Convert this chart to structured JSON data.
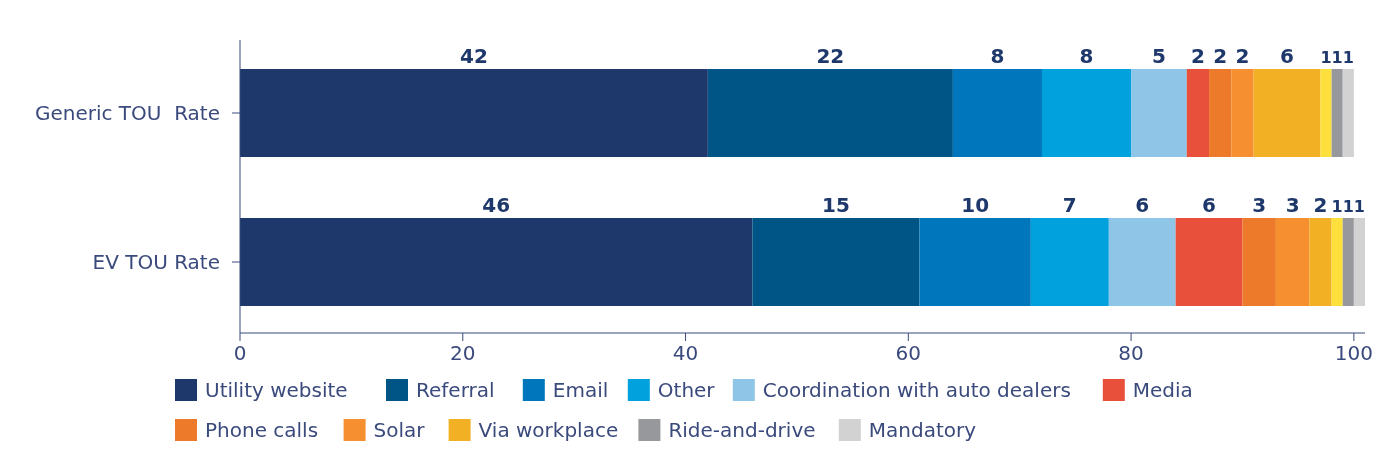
{
  "chart_data": {
    "type": "bar",
    "orientation": "horizontal",
    "stacked": true,
    "categories": [
      "Generic TOU  Rate",
      "EV TOU Rate"
    ],
    "series": [
      {
        "name": "Utility website",
        "color": "#1f386b",
        "values": [
          42,
          46
        ]
      },
      {
        "name": "Referral",
        "color": "#005587",
        "values": [
          22,
          15
        ]
      },
      {
        "name": "Email",
        "color": "#0077bc",
        "values": [
          8,
          10
        ]
      },
      {
        "name": "Other",
        "color": "#00a1dc",
        "values": [
          8,
          7
        ]
      },
      {
        "name": "Coordination with auto dealers",
        "color": "#8fc6e8",
        "values": [
          5,
          6
        ]
      },
      {
        "name": "Media",
        "color": "#e8503c",
        "values": [
          2,
          6
        ]
      },
      {
        "name": "Phone calls",
        "color": "#ec7a2a",
        "values": [
          2,
          3
        ]
      },
      {
        "name": "Solar",
        "color": "#f68f2f",
        "values": [
          2,
          3
        ]
      },
      {
        "name": "Via workplace",
        "color": "#f2b025",
        "values": [
          6,
          2
        ]
      },
      {
        "color": "#fde03c",
        "values": [
          1,
          1
        ]
      },
      {
        "name": "Ride-and-drive",
        "color": "#97989c",
        "values": [
          1,
          1
        ]
      },
      {
        "name": "Mandatory",
        "color": "#d2d2d2",
        "values": [
          1,
          1
        ]
      }
    ],
    "xlim": [
      0,
      101
    ],
    "xticks": [
      0,
      20,
      40,
      60,
      80,
      100
    ],
    "data_labels": true,
    "legend": "bottom",
    "grid": false
  }
}
